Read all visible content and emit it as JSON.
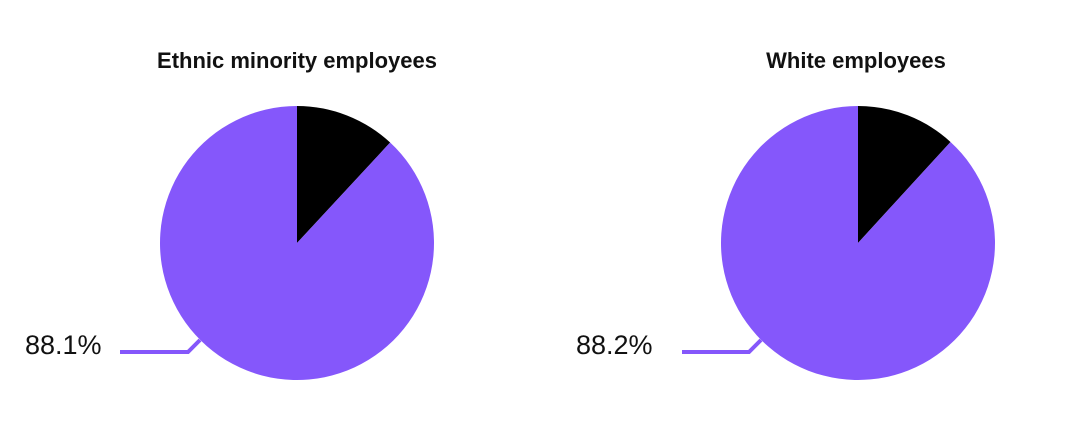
{
  "chart_data": [
    {
      "type": "pie",
      "title": "Ethnic minority employees",
      "values": [
        11.9,
        88.1
      ],
      "value_labels": [
        null,
        "88.1%"
      ],
      "colors": [
        "#000000",
        "#8557fb"
      ]
    },
    {
      "type": "pie",
      "title": "White employees",
      "values": [
        11.8,
        88.2
      ],
      "value_labels": [
        null,
        "88.2%"
      ],
      "colors": [
        "#000000",
        "#8557fb"
      ]
    }
  ]
}
